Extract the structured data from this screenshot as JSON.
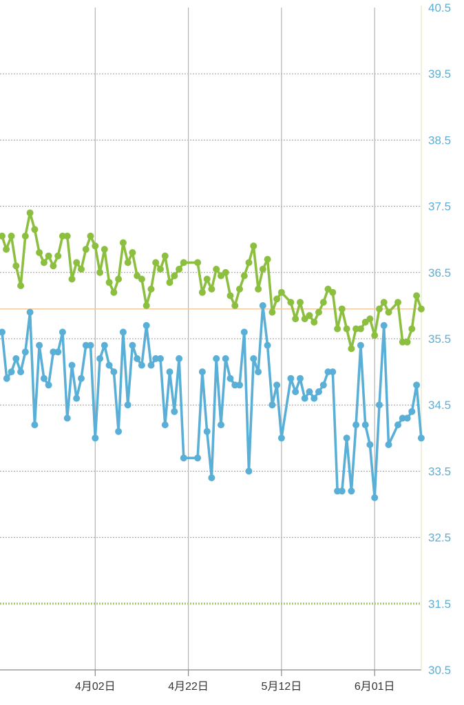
{
  "chart_data": {
    "type": "line",
    "title": "",
    "xlabel": "",
    "ylabel": "",
    "ylim": [
      30.5,
      40.5
    ],
    "y_ticks": [
      "40.5",
      "39.5",
      "38.5",
      "37.5",
      "36.5",
      "35.5",
      "34.5",
      "33.5",
      "32.5",
      "31.5",
      "30.5"
    ],
    "x_ticks": [
      "4月02日",
      "4月22日",
      "5月12日",
      "6月01日"
    ],
    "x_tick_days": [
      20,
      40,
      60,
      80
    ],
    "reference_line": 35.95,
    "threshold_line": 31.5,
    "colors": {
      "upper": "#8cbf3f",
      "lower": "#5aafd6",
      "reference": "#f5c9a0",
      "threshold": "#a5cc66",
      "ytick": "#5aafd6",
      "grid": "#aaaaaa"
    },
    "series": [
      {
        "key": "upper",
        "points": [
          [
            0.0,
            37.05
          ],
          [
            0.9,
            36.85
          ],
          [
            2.0,
            37.05
          ],
          [
            3.0,
            36.6
          ],
          [
            4.0,
            36.3
          ],
          [
            5.0,
            37.05
          ],
          [
            6.0,
            37.4
          ],
          [
            7.0,
            37.15
          ],
          [
            8.0,
            36.8
          ],
          [
            9.0,
            36.65
          ],
          [
            10.0,
            36.75
          ],
          [
            11.0,
            36.6
          ],
          [
            12.0,
            36.75
          ],
          [
            13.0,
            37.05
          ],
          [
            14.0,
            37.05
          ],
          [
            15.0,
            36.4
          ],
          [
            16.0,
            36.65
          ],
          [
            17.0,
            36.55
          ],
          [
            18.0,
            36.85
          ],
          [
            19.0,
            37.05
          ],
          [
            20.0,
            36.9
          ],
          [
            21.0,
            36.5
          ],
          [
            22.0,
            36.85
          ],
          [
            23.0,
            36.35
          ],
          [
            24.0,
            36.2
          ],
          [
            25.0,
            36.4
          ],
          [
            26.0,
            36.95
          ],
          [
            27.0,
            36.65
          ],
          [
            28.0,
            36.8
          ],
          [
            29.0,
            36.45
          ],
          [
            30.0,
            36.4
          ],
          [
            31.0,
            36.0
          ],
          [
            32.0,
            36.25
          ],
          [
            33.0,
            36.65
          ],
          [
            34.0,
            36.55
          ],
          [
            35.0,
            36.75
          ],
          [
            36.0,
            36.35
          ],
          [
            37.0,
            36.45
          ],
          [
            38.0,
            36.55
          ],
          [
            39.0,
            36.65
          ],
          [
            42.0,
            36.65
          ],
          [
            43.0,
            36.2
          ],
          [
            44.0,
            36.4
          ],
          [
            45.0,
            36.25
          ],
          [
            46.0,
            36.55
          ],
          [
            47.0,
            36.45
          ],
          [
            48.0,
            36.5
          ],
          [
            49.0,
            36.15
          ],
          [
            50.0,
            36.0
          ],
          [
            51.0,
            36.25
          ],
          [
            52.0,
            36.45
          ],
          [
            53.0,
            36.65
          ],
          [
            54.0,
            36.9
          ],
          [
            55.0,
            36.25
          ],
          [
            56.0,
            36.55
          ],
          [
            57.0,
            36.7
          ],
          [
            58.0,
            35.9
          ],
          [
            59.0,
            36.1
          ],
          [
            60.0,
            36.2
          ],
          [
            62.0,
            36.05
          ],
          [
            63.0,
            35.8
          ],
          [
            64.0,
            36.05
          ],
          [
            65.0,
            35.8
          ],
          [
            66.0,
            35.85
          ],
          [
            67.0,
            35.75
          ],
          [
            68.0,
            35.9
          ],
          [
            69.0,
            36.05
          ],
          [
            70.0,
            36.25
          ],
          [
            71.0,
            36.2
          ],
          [
            72.0,
            35.65
          ],
          [
            73.0,
            35.95
          ],
          [
            74.0,
            35.65
          ],
          [
            75.0,
            35.35
          ],
          [
            76.0,
            35.65
          ],
          [
            77.0,
            35.65
          ],
          [
            78.0,
            35.75
          ],
          [
            79.0,
            35.8
          ],
          [
            80.0,
            35.55
          ],
          [
            81.0,
            35.95
          ],
          [
            82.0,
            36.05
          ],
          [
            83.0,
            35.9
          ],
          [
            85.0,
            36.05
          ],
          [
            86.0,
            35.45
          ],
          [
            87.0,
            35.45
          ],
          [
            88.0,
            35.65
          ],
          [
            89.0,
            36.15
          ],
          [
            90.0,
            35.95
          ]
        ]
      },
      {
        "key": "lower",
        "points": [
          [
            0.0,
            35.6
          ],
          [
            1.0,
            34.9
          ],
          [
            2.0,
            35.0
          ],
          [
            3.0,
            35.2
          ],
          [
            4.0,
            35.0
          ],
          [
            5.0,
            35.3
          ],
          [
            6.0,
            35.9
          ],
          [
            7.0,
            34.2
          ],
          [
            8.0,
            35.4
          ],
          [
            9.0,
            34.9
          ],
          [
            10.0,
            34.8
          ],
          [
            11.0,
            35.3
          ],
          [
            12.0,
            35.3
          ],
          [
            13.0,
            35.6
          ],
          [
            14.0,
            34.3
          ],
          [
            15.0,
            35.1
          ],
          [
            16.0,
            34.6
          ],
          [
            17.0,
            34.9
          ],
          [
            18.0,
            35.4
          ],
          [
            19.0,
            35.4
          ],
          [
            20.0,
            34.0
          ],
          [
            21.0,
            35.2
          ],
          [
            22.0,
            35.4
          ],
          [
            23.0,
            35.1
          ],
          [
            24.0,
            35.0
          ],
          [
            25.0,
            34.1
          ],
          [
            26.0,
            35.6
          ],
          [
            27.0,
            34.5
          ],
          [
            28.0,
            35.4
          ],
          [
            29.0,
            35.2
          ],
          [
            30.0,
            35.1
          ],
          [
            31.0,
            35.7
          ],
          [
            32.0,
            35.1
          ],
          [
            33.0,
            35.2
          ],
          [
            34.0,
            35.2
          ],
          [
            35.0,
            34.2
          ],
          [
            36.0,
            35.0
          ],
          [
            37.0,
            34.4
          ],
          [
            38.0,
            35.2
          ],
          [
            39.0,
            33.7
          ],
          [
            42.0,
            33.7
          ],
          [
            43.0,
            35.0
          ],
          [
            44.0,
            34.1
          ],
          [
            45.0,
            33.4
          ],
          [
            46.0,
            35.2
          ],
          [
            47.0,
            34.2
          ],
          [
            48.0,
            35.2
          ],
          [
            49.0,
            34.9
          ],
          [
            50.0,
            34.8
          ],
          [
            51.0,
            34.8
          ],
          [
            52.0,
            35.6
          ],
          [
            53.0,
            33.5
          ],
          [
            54.0,
            35.2
          ],
          [
            55.0,
            35.0
          ],
          [
            56.0,
            36.0
          ],
          [
            57.0,
            35.4
          ],
          [
            58.0,
            34.5
          ],
          [
            59.0,
            34.8
          ],
          [
            60.0,
            34.0
          ],
          [
            62.0,
            34.9
          ],
          [
            63.0,
            34.7
          ],
          [
            64.0,
            34.9
          ],
          [
            65.0,
            34.6
          ],
          [
            66.0,
            34.7
          ],
          [
            67.0,
            34.6
          ],
          [
            68.0,
            34.7
          ],
          [
            69.0,
            34.8
          ],
          [
            70.0,
            35.0
          ],
          [
            71.0,
            35.0
          ],
          [
            72.0,
            33.2
          ],
          [
            73.0,
            33.2
          ],
          [
            74.0,
            34.0
          ],
          [
            75.0,
            33.2
          ],
          [
            76.0,
            34.2
          ],
          [
            77.0,
            35.4
          ],
          [
            78.0,
            34.2
          ],
          [
            79.0,
            33.9
          ],
          [
            80.0,
            33.1
          ],
          [
            81.0,
            34.5
          ],
          [
            82.0,
            35.7
          ],
          [
            83.0,
            33.9
          ],
          [
            85.0,
            34.2
          ],
          [
            86.0,
            34.3
          ],
          [
            87.0,
            34.3
          ],
          [
            88.0,
            34.4
          ],
          [
            89.0,
            34.8
          ],
          [
            90.0,
            34.0
          ]
        ]
      }
    ]
  }
}
